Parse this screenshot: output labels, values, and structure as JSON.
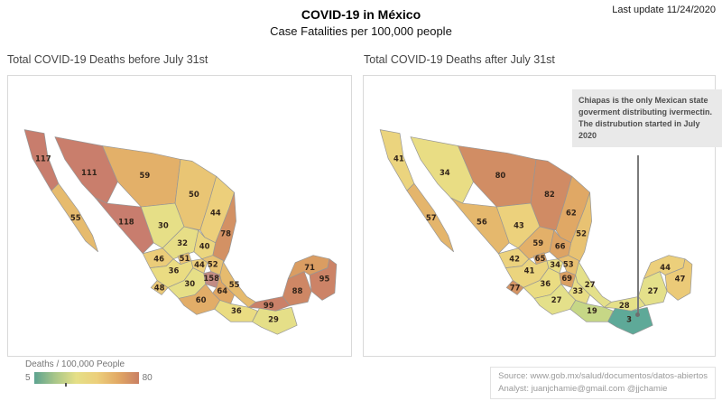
{
  "header": {
    "title": "COVID-19 in México",
    "subtitle": "Case Fatalities per 100,000 people",
    "last_update": "Last update 11/24/2020"
  },
  "panels": {
    "left": {
      "title": "Total COVID-19 Deaths before July 31st"
    },
    "right": {
      "title": "Total COVID-19 Deaths after July 31st"
    }
  },
  "annotation": {
    "text": "Chiapas is the only Mexican state goverment distributing ivermectin.\nThe distrubution started in July 2020"
  },
  "legend": {
    "title": "Deaths / 100,000 People",
    "min": "5",
    "max": "80",
    "gradient": [
      "#5da390",
      "#a9c689",
      "#e5df87",
      "#eccf7b",
      "#e2a965",
      "#c97f63"
    ]
  },
  "footer": {
    "source": "Source: www.gob.mx/salud/documentos/datos-abiertos",
    "analyst": "Analyst: juanjchamie@gmail.com @jjchamie"
  },
  "chart_data": {
    "type": "heatmap",
    "subtype": "choropleth-map-pair",
    "title": "COVID-19 in México — Case Fatalities per 100,000 people",
    "unit": "deaths per 100,000 people",
    "legend": {
      "min": 5,
      "max": 80,
      "colors_low_to_high": [
        "green",
        "yellow",
        "orange",
        "red"
      ]
    },
    "series": [
      {
        "name": "Total COVID-19 Deaths before July 31st",
        "key": "before"
      },
      {
        "name": "Total COVID-19 Deaths after July 31st",
        "key": "after"
      }
    ],
    "states": [
      {
        "name": "Baja California",
        "before": 117,
        "after": 41
      },
      {
        "name": "Baja California Sur",
        "before": 55,
        "after": 57
      },
      {
        "name": "Sonora",
        "before": 111,
        "after": 34
      },
      {
        "name": "Chihuahua",
        "before": 59,
        "after": 80
      },
      {
        "name": "Coahuila",
        "before": 50,
        "after": 82
      },
      {
        "name": "Nuevo León",
        "before": 44,
        "after": 62
      },
      {
        "name": "Tamaulipas",
        "before": 78,
        "after": 52
      },
      {
        "name": "Sinaloa",
        "before": 118,
        "after": 56
      },
      {
        "name": "Durango",
        "before": 30,
        "after": 43
      },
      {
        "name": "Zacatecas",
        "before": 32,
        "after": 59
      },
      {
        "name": "San Luis Potosí",
        "before": 40,
        "after": 66
      },
      {
        "name": "Nayarit",
        "before": 46,
        "after": 42
      },
      {
        "name": "Aguascalientes",
        "before": 51,
        "after": 65
      },
      {
        "name": "Jalisco",
        "before": 36,
        "after": 41
      },
      {
        "name": "Guanajuato",
        "before": 44,
        "after": 34
      },
      {
        "name": "Hidalgo",
        "before": 52,
        "after": 53
      },
      {
        "name": "Colima",
        "before": 48,
        "after": 77
      },
      {
        "name": "Michoacán",
        "before": 30,
        "after": 36
      },
      {
        "name": "Ciudad de México",
        "before": 158,
        "after": 69
      },
      {
        "name": "Puebla",
        "before": 64,
        "after": 33
      },
      {
        "name": "Veracruz",
        "before": 55,
        "after": 27
      },
      {
        "name": "Guerrero",
        "before": 60,
        "after": 27
      },
      {
        "name": "Oaxaca",
        "before": 36,
        "after": 19
      },
      {
        "name": "Tabasco",
        "before": 99,
        "after": 28
      },
      {
        "name": "Chiapas",
        "before": 29,
        "after": 3
      },
      {
        "name": "Campeche",
        "before": 88,
        "after": 27
      },
      {
        "name": "Yucatán",
        "before": 71,
        "after": 44
      },
      {
        "name": "Quintana Roo",
        "before": 95,
        "after": 47
      }
    ]
  }
}
